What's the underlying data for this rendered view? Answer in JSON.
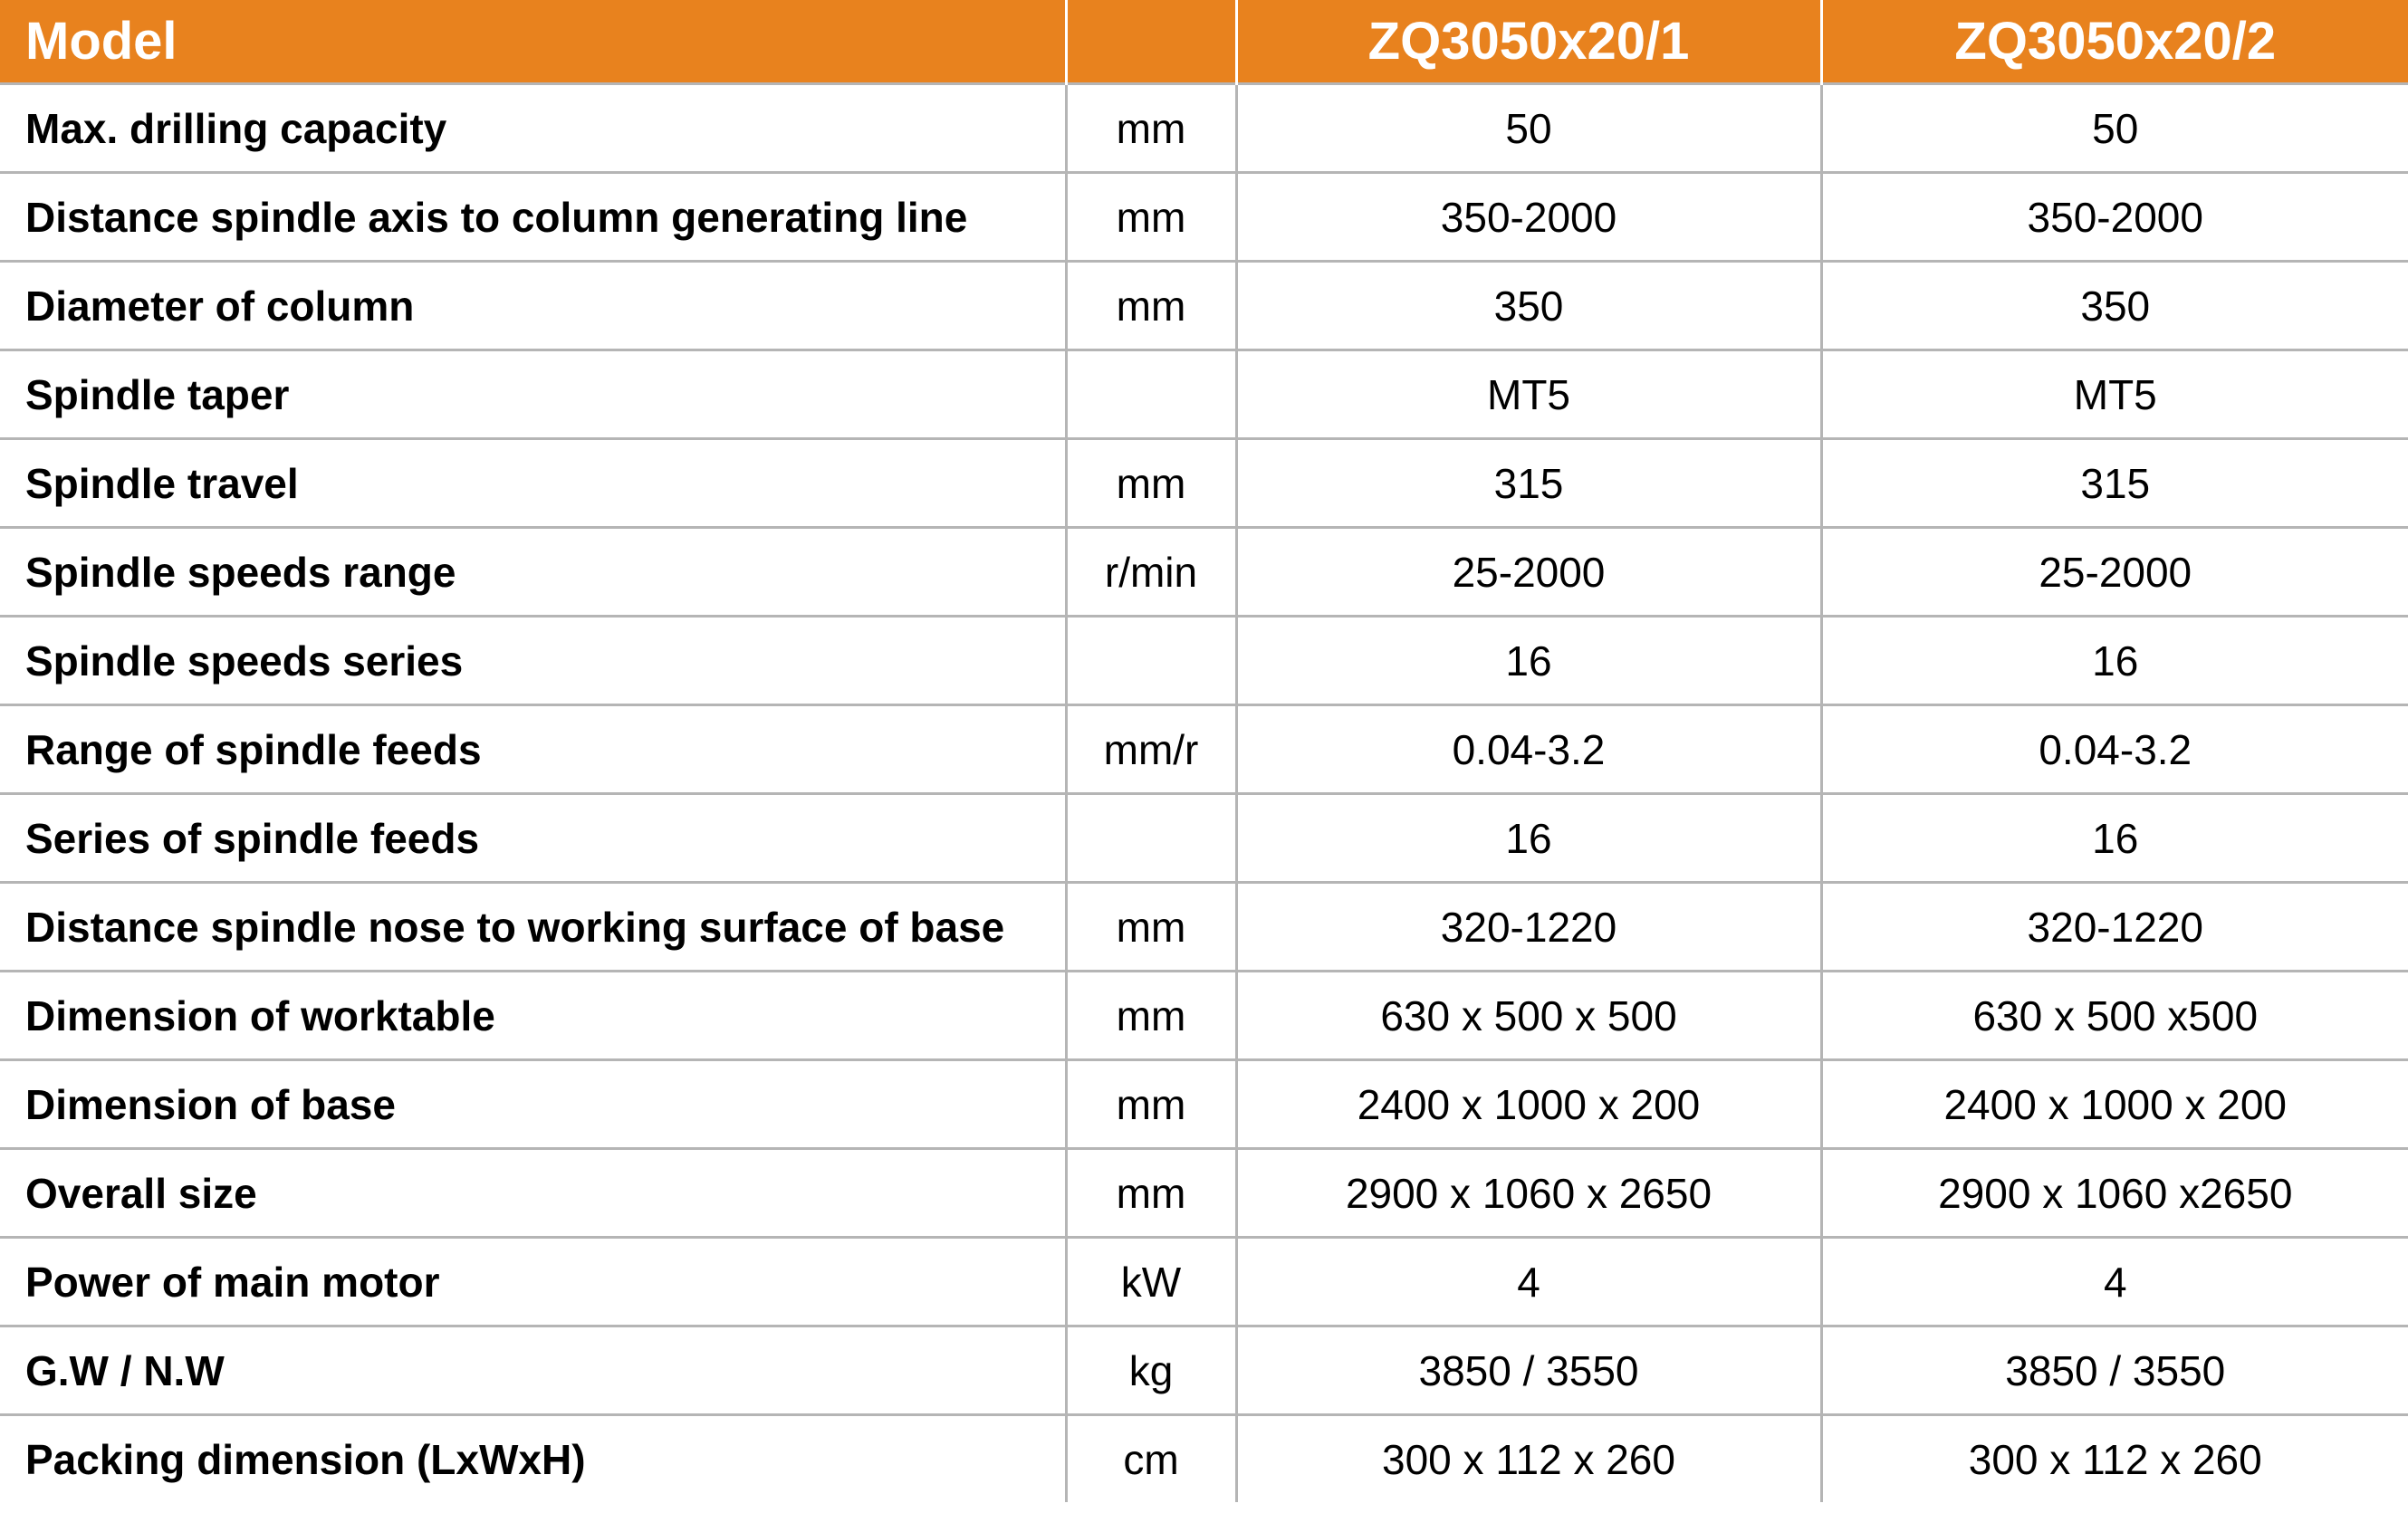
{
  "header": {
    "title": "Model",
    "columns": [
      "ZQ3050x20/1",
      "ZQ3050x20/2"
    ]
  },
  "rows": [
    {
      "label": "Max. drilling capacity",
      "unit": "mm",
      "values": [
        "50",
        "50"
      ]
    },
    {
      "label": "Distance spindle axis to column generating line",
      "unit": "mm",
      "values": [
        "350-2000",
        "350-2000"
      ]
    },
    {
      "label": "Diameter of column",
      "unit": "mm",
      "values": [
        "350",
        "350"
      ]
    },
    {
      "label": "Spindle taper",
      "values": [
        "MT5",
        "MT5"
      ]
    },
    {
      "label": "Spindle travel",
      "unit": "mm",
      "values": [
        "315",
        "315"
      ]
    },
    {
      "label": "Spindle speeds range",
      "unit": "r/min",
      "values": [
        "25-2000",
        "25-2000"
      ]
    },
    {
      "label": "Spindle speeds series",
      "values": [
        "16",
        "16"
      ]
    },
    {
      "label": "Range of spindle feeds",
      "unit": "mm/r",
      "values": [
        "0.04-3.2",
        "0.04-3.2"
      ]
    },
    {
      "label": "Series of spindle feeds",
      "values": [
        "16",
        "16"
      ]
    },
    {
      "label": "Distance spindle nose to working surface of base",
      "unit": "mm",
      "values": [
        "320-1220",
        "320-1220"
      ]
    },
    {
      "label": "Dimension of worktable",
      "unit": "mm",
      "values": [
        "630 x 500 x 500",
        "630 x 500 x500"
      ]
    },
    {
      "label": "Dimension of base",
      "unit": "mm",
      "values": [
        "2400 x 1000 x 200",
        "2400 x 1000 x 200"
      ]
    },
    {
      "label": "Overall size",
      "unit": "mm",
      "values": [
        "2900 x 1060 x 2650",
        "2900 x 1060 x2650"
      ]
    },
    {
      "label": "Power of main motor",
      "unit": "kW",
      "values": [
        "4",
        "4"
      ]
    },
    {
      "label": "G.W / N.W",
      "unit": "kg",
      "values": [
        "3850 / 3550",
        "3850 / 3550"
      ]
    },
    {
      "label": "Packing dimension (LxWxH)",
      "unit": "cm",
      "values": [
        "300 x 112 x 260",
        "300 x 112 x 260"
      ]
    }
  ]
}
